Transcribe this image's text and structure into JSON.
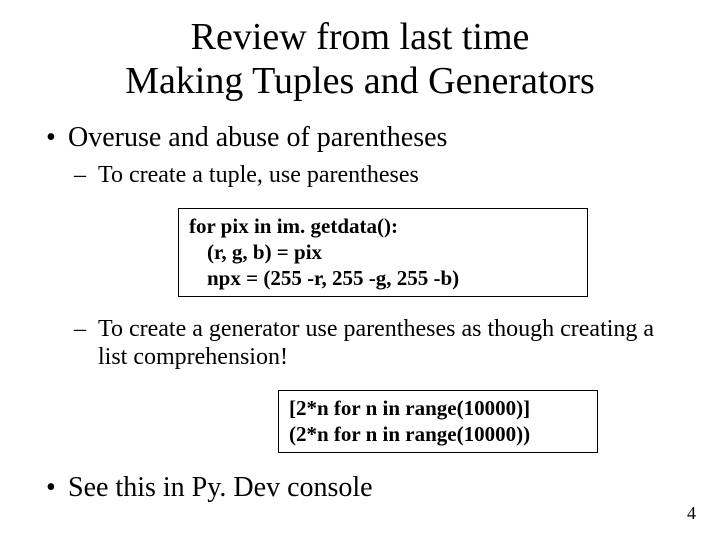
{
  "title_line1": "Review from last time",
  "title_line2": "Making Tuples and Generators",
  "bullets": {
    "b1": "Overuse and abuse of parentheses",
    "b1_sub1": "To create a tuple, use parentheses",
    "b1_sub2": "To create a generator use parentheses as though creating a list comprehension!",
    "b2": "See this in Py. Dev console"
  },
  "code1": {
    "line1": "for pix in im. getdata():",
    "line2": "(r, g, b) = pix",
    "line3": "npx = (255 -r, 255 -g, 255 -b)"
  },
  "code2": {
    "line1": "[2*n for n in range(10000)]",
    "line2": "(2*n for n in range(10000))"
  },
  "page_number": "4"
}
